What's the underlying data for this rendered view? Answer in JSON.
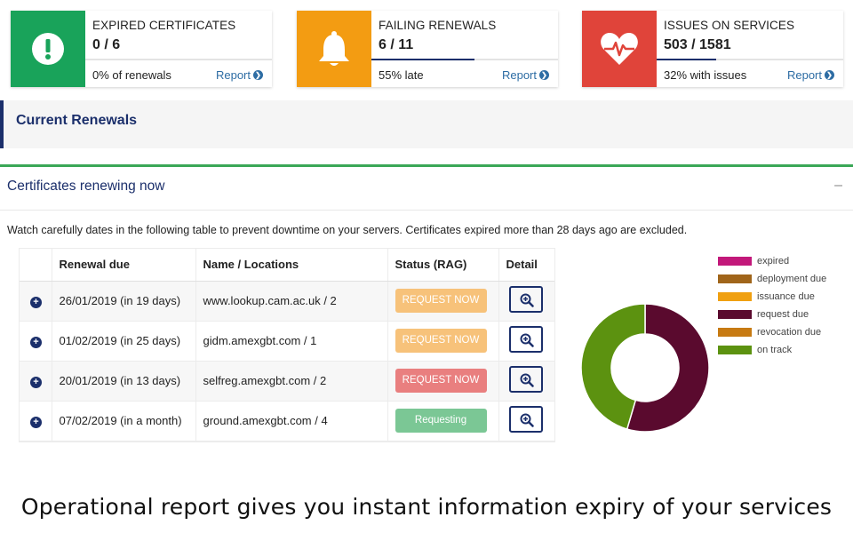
{
  "cards": [
    {
      "title": "EXPIRED CERTIFICATES",
      "value": "0 / 6",
      "subtitle": "0% of renewals",
      "link": "Report",
      "color": "#19a35a",
      "icon": "exclamation-icon",
      "progress": 0.0
    },
    {
      "title": "FAILING RENEWALS",
      "value": "6 / 11",
      "subtitle": "55% late",
      "link": "Report",
      "color": "#f39c12",
      "icon": "bell-icon",
      "progress": 0.55
    },
    {
      "title": "ISSUES ON SERVICES",
      "value": "503 / 1581",
      "subtitle": "32% with issues",
      "link": "Report",
      "color": "#e0443a",
      "icon": "heartbeat-icon",
      "progress": 0.32
    }
  ],
  "current_renewals": {
    "title": "Current Renewals"
  },
  "panel": {
    "title": "Certificates renewing now",
    "collapse": "–",
    "description": "Watch carefully dates in the following table to prevent downtime on your servers. Certificates expired more than 28 days ago are excluded."
  },
  "table": {
    "headers": {
      "due": "Renewal due",
      "name": "Name / Locations",
      "status": "Status (RAG)",
      "detail": "Detail"
    },
    "rows": [
      {
        "due": "26/01/2019 (in 19 days)",
        "name": "www.lookup.cam.ac.uk / 2",
        "status": "REQUEST NOW",
        "status_color": "amber"
      },
      {
        "due": "01/02/2019 (in 25 days)",
        "name": "gidm.amexgbt.com / 1",
        "status": "REQUEST NOW",
        "status_color": "amber"
      },
      {
        "due": "20/01/2019 (in 13 days)",
        "name": "selfreg.amexgbt.com / 2",
        "status": "REQUEST NOW",
        "status_color": "red"
      },
      {
        "due": "07/02/2019 (in a month)",
        "name": "ground.amexgbt.com / 4",
        "status": "Requesting",
        "status_color": "green"
      }
    ]
  },
  "chart_data": {
    "type": "pie",
    "donut": true,
    "legend_position": "right",
    "labels": [
      "expired",
      "deployment due",
      "issuance due",
      "request due",
      "revocation due",
      "on track"
    ],
    "colors": [
      "#c2187a",
      "#a0651a",
      "#f0a011",
      "#5a0a2e",
      "#c77a12",
      "#5c9210"
    ],
    "values": [
      0,
      0,
      0,
      6,
      0,
      5
    ]
  },
  "caption": "Operational report gives you instant information expiry of your services"
}
